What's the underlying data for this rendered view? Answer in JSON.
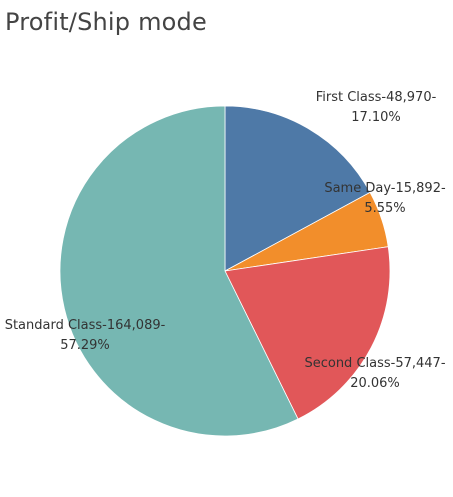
{
  "chart_data": {
    "type": "pie",
    "title": "Profit/Ship mode",
    "slices": [
      {
        "name": "First Class",
        "value": 48970,
        "label_line1": "First Class-48,970-",
        "label_line2": "17.10%",
        "color": "#4e79a7"
      },
      {
        "name": "Same Day",
        "value": 15892,
        "label_line1": "Same Day-15,892-",
        "label_line2": "5.55%",
        "color": "#f28e2b"
      },
      {
        "name": "Second Class",
        "value": 57447,
        "label_line1": "Second Class-57,447-",
        "label_line2": "20.06%",
        "color": "#e15759"
      },
      {
        "name": "Standard Class",
        "value": 164089,
        "label_line1": "Standard Class-164,089-",
        "label_line2": "57.29%",
        "color": "#76b7b2"
      }
    ]
  }
}
